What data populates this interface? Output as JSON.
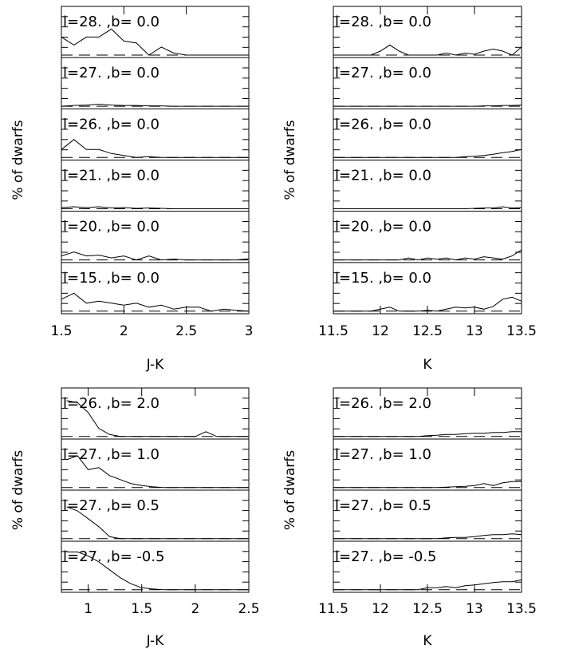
{
  "chart_data": [
    {
      "type": "line",
      "xlabel": "J-K",
      "ylabel": "% of dwarfs",
      "xlim": [
        1.5,
        3.0
      ],
      "xticks": [
        "1.5",
        "2",
        "2.5",
        "3"
      ],
      "panels": [
        {
          "label": "l=28. ,b=  0.0",
          "x": [
            1.5,
            1.6,
            1.7,
            1.8,
            1.9,
            2.0,
            2.1,
            2.2,
            2.3,
            2.4,
            2.5,
            2.6,
            2.7,
            2.8,
            2.9,
            3.0
          ],
          "y": [
            0.45,
            0.25,
            0.45,
            0.45,
            0.65,
            0.35,
            0.3,
            0.0,
            0.2,
            0.05,
            0.0,
            0.0,
            0.0,
            0.0,
            0.0,
            0.0
          ]
        },
        {
          "label": "l=27. ,b=  0.0",
          "x": [
            1.5,
            1.6,
            1.7,
            1.8,
            1.9,
            2.0,
            2.1,
            2.2,
            2.3,
            2.4,
            2.5,
            2.6,
            2.7,
            2.8,
            2.9,
            3.0
          ],
          "y": [
            0.0,
            0.02,
            0.03,
            0.05,
            0.03,
            0.02,
            0.02,
            0.01,
            0.01,
            0.0,
            0.0,
            0.0,
            0.0,
            0.0,
            0.0,
            0.0
          ]
        },
        {
          "label": "l=26. ,b=  0.0",
          "x": [
            1.5,
            1.6,
            1.7,
            1.8,
            1.9,
            2.0,
            2.1,
            2.2,
            2.3,
            2.4,
            2.5,
            2.6,
            2.7,
            2.8,
            2.9,
            3.0
          ],
          "y": [
            0.2,
            0.45,
            0.2,
            0.2,
            0.1,
            0.05,
            0.0,
            0.02,
            0.0,
            0.0,
            0.0,
            0.0,
            0.0,
            0.0,
            0.0,
            0.0
          ]
        },
        {
          "label": "l=21. ,b=  0.0",
          "x": [
            1.5,
            1.6,
            1.7,
            1.8,
            1.9,
            2.0,
            2.1,
            2.2,
            2.3,
            2.4,
            2.5,
            2.6,
            2.7,
            2.8,
            2.9,
            3.0
          ],
          "y": [
            0.03,
            0.05,
            0.03,
            0.05,
            0.02,
            0.03,
            0.01,
            0.02,
            0.01,
            0.0,
            0.0,
            0.0,
            0.0,
            0.0,
            0.0,
            0.0
          ]
        },
        {
          "label": "l=20. ,b=  0.0",
          "x": [
            1.5,
            1.6,
            1.7,
            1.8,
            1.9,
            2.0,
            2.1,
            2.2,
            2.3,
            2.4,
            2.5,
            2.6,
            2.7,
            2.8,
            2.9,
            3.0
          ],
          "y": [
            0.1,
            0.2,
            0.1,
            0.12,
            0.05,
            0.1,
            0.0,
            0.1,
            0.0,
            0.02,
            0.0,
            0.0,
            0.0,
            0.0,
            0.0,
            0.03
          ]
        },
        {
          "label": "l=15. ,b=  0.0",
          "x": [
            1.5,
            1.6,
            1.7,
            1.8,
            1.9,
            2.0,
            2.1,
            2.2,
            2.3,
            2.4,
            2.5,
            2.6,
            2.7,
            2.8,
            2.9,
            3.0
          ],
          "y": [
            0.3,
            0.45,
            0.2,
            0.25,
            0.2,
            0.15,
            0.2,
            0.1,
            0.15,
            0.05,
            0.1,
            0.1,
            0.0,
            0.05,
            0.02,
            0.0
          ]
        }
      ]
    },
    {
      "type": "line",
      "xlabel": "K",
      "ylabel": "% of dwarfs",
      "xlim": [
        11.5,
        13.5
      ],
      "xticks": [
        "11.5",
        "12",
        "12.5",
        "13",
        "13.5"
      ],
      "panels": [
        {
          "label": "l=28. ,b=  0.0",
          "x": [
            11.5,
            11.6,
            11.7,
            11.8,
            11.9,
            12.0,
            12.1,
            12.2,
            12.3,
            12.4,
            12.5,
            12.6,
            12.7,
            12.8,
            12.9,
            13.0,
            13.1,
            13.2,
            13.3,
            13.4,
            13.5
          ],
          "y": [
            0,
            0,
            0,
            0,
            0,
            0.1,
            0.25,
            0.1,
            0,
            0,
            0,
            0,
            0.05,
            0,
            0.05,
            0.02,
            0.1,
            0.15,
            0.1,
            0,
            0.2
          ]
        },
        {
          "label": "l=27. ,b=  0.0",
          "x": [
            11.5,
            11.6,
            11.7,
            11.8,
            11.9,
            12.0,
            12.1,
            12.2,
            12.3,
            12.4,
            12.5,
            12.6,
            12.7,
            12.8,
            12.9,
            13.0,
            13.1,
            13.2,
            13.3,
            13.4,
            13.5
          ],
          "y": [
            0,
            0,
            0,
            0,
            0,
            0,
            0,
            0,
            0,
            0,
            0,
            0,
            0,
            0,
            0,
            0,
            0.01,
            0.01,
            0.02,
            0.02,
            0.03
          ]
        },
        {
          "label": "l=26. ,b=  0.0",
          "x": [
            11.5,
            11.6,
            11.7,
            11.8,
            11.9,
            12.0,
            12.1,
            12.2,
            12.3,
            12.4,
            12.5,
            12.6,
            12.7,
            12.8,
            12.9,
            13.0,
            13.1,
            13.2,
            13.3,
            13.4,
            13.5
          ],
          "y": [
            0,
            0,
            0,
            0,
            0,
            0,
            0,
            0,
            0,
            0,
            0,
            0,
            0,
            0,
            0.02,
            0.03,
            0.05,
            0.08,
            0.12,
            0.15,
            0.2
          ]
        },
        {
          "label": "l=21. ,b=  0.0",
          "x": [
            11.5,
            11.6,
            11.7,
            11.8,
            11.9,
            12.0,
            12.1,
            12.2,
            12.3,
            12.4,
            12.5,
            12.6,
            12.7,
            12.8,
            12.9,
            13.0,
            13.1,
            13.2,
            13.3,
            13.4,
            13.5
          ],
          "y": [
            0,
            0,
            0,
            0,
            0,
            0,
            0,
            0,
            0,
            0,
            0,
            0,
            0,
            0,
            0,
            0.01,
            0.02,
            0.02,
            0.05,
            0.02,
            0.03
          ]
        },
        {
          "label": "l=20. ,b=  0.0",
          "x": [
            11.5,
            11.6,
            11.7,
            11.8,
            11.9,
            12.0,
            12.1,
            12.2,
            12.3,
            12.4,
            12.5,
            12.6,
            12.7,
            12.8,
            12.9,
            13.0,
            13.1,
            13.2,
            13.3,
            13.4,
            13.5
          ],
          "y": [
            0,
            0,
            0,
            0,
            0,
            0,
            0,
            0,
            0.05,
            0,
            0.05,
            0.02,
            0.05,
            0,
            0.05,
            0.02,
            0.08,
            0.05,
            0.02,
            0.1,
            0.25
          ]
        },
        {
          "label": "l=15. ,b=  0.0",
          "x": [
            11.5,
            11.6,
            11.7,
            11.8,
            11.9,
            12.0,
            12.1,
            12.2,
            12.3,
            12.4,
            12.5,
            12.6,
            12.7,
            12.8,
            12.9,
            13.0,
            13.1,
            13.2,
            13.3,
            13.4,
            13.5
          ],
          "y": [
            0,
            0,
            0,
            0,
            0,
            0.05,
            0.1,
            0,
            0,
            0,
            0.02,
            0,
            0.05,
            0.1,
            0.08,
            0.1,
            0.05,
            0.12,
            0.3,
            0.35,
            0.25
          ]
        }
      ]
    },
    {
      "type": "line",
      "xlabel": "J-K",
      "ylabel": "% of dwarfs",
      "xlim": [
        0.75,
        2.5
      ],
      "xticks": [
        "1",
        "1.5",
        "2",
        "2.5"
      ],
      "panels": [
        {
          "label": "l=26. ,b=  2.0",
          "x": [
            0.8,
            0.9,
            1.0,
            1.1,
            1.2,
            1.3,
            1.4,
            1.5,
            1.6,
            1.7,
            1.8,
            1.9,
            2.0,
            2.1,
            2.2,
            2.3,
            2.4,
            2.5
          ],
          "y": [
            0.9,
            0.85,
            0.6,
            0.2,
            0.05,
            0,
            0,
            0,
            0,
            0,
            0,
            0,
            0,
            0.12,
            0,
            0,
            0,
            0
          ]
        },
        {
          "label": "l=27. ,b=  1.0",
          "x": [
            0.8,
            0.9,
            1.0,
            1.1,
            1.2,
            1.3,
            1.4,
            1.5,
            1.6,
            1.7,
            1.8,
            1.9,
            2.0,
            2.1,
            2.2,
            2.3,
            2.4,
            2.5
          ],
          "y": [
            0.7,
            0.8,
            0.45,
            0.5,
            0.3,
            0.2,
            0.1,
            0.05,
            0.02,
            0,
            0,
            0,
            0,
            0,
            0,
            0,
            0,
            0
          ]
        },
        {
          "label": "l=27. ,b=  0.5",
          "x": [
            0.8,
            0.9,
            1.0,
            1.1,
            1.2,
            1.3,
            1.4,
            1.5,
            1.6,
            1.7,
            1.8,
            1.9,
            2.0,
            2.1,
            2.2,
            2.3,
            2.4,
            2.5
          ],
          "y": [
            0.8,
            0.7,
            0.5,
            0.3,
            0.05,
            0,
            0,
            0,
            0,
            0,
            0,
            0,
            0,
            0,
            0,
            0,
            0,
            0
          ]
        },
        {
          "label": "l=27. ,b= -0.5",
          "x": [
            0.8,
            0.9,
            1.0,
            1.1,
            1.2,
            1.3,
            1.4,
            1.5,
            1.6,
            1.7,
            1.8,
            1.9,
            2.0,
            2.1,
            2.2,
            2.3,
            2.4,
            2.5
          ],
          "y": [
            0.95,
            0.95,
            0.85,
            0.7,
            0.5,
            0.3,
            0.15,
            0.05,
            0.02,
            0,
            0,
            0,
            0,
            0,
            0,
            0,
            0,
            0
          ]
        }
      ]
    },
    {
      "type": "line",
      "xlabel": "K",
      "ylabel": "% of dwarfs",
      "xlim": [
        11.5,
        13.5
      ],
      "xticks": [
        "11.5",
        "12",
        "12.5",
        "13",
        "13.5"
      ],
      "panels": [
        {
          "label": "l=26. ,b=  2.0",
          "x": [
            11.5,
            11.6,
            11.7,
            11.8,
            11.9,
            12.0,
            12.1,
            12.2,
            12.3,
            12.4,
            12.5,
            12.6,
            12.7,
            12.8,
            12.9,
            13.0,
            13.1,
            13.2,
            13.3,
            13.4,
            13.5
          ],
          "y": [
            0,
            0,
            0,
            0,
            0,
            0,
            0,
            0,
            0,
            0,
            0.02,
            0.03,
            0.05,
            0.05,
            0.07,
            0.08,
            0.08,
            0.1,
            0.1,
            0.12,
            0.12
          ]
        },
        {
          "label": "l=27. ,b=  1.0",
          "x": [
            11.5,
            11.6,
            11.7,
            11.8,
            11.9,
            12.0,
            12.1,
            12.2,
            12.3,
            12.4,
            12.5,
            12.6,
            12.7,
            12.8,
            12.9,
            13.0,
            13.1,
            13.2,
            13.3,
            13.4,
            13.5
          ],
          "y": [
            0,
            0,
            0,
            0,
            0,
            0,
            0,
            0,
            0,
            0,
            0,
            0,
            0.01,
            0.02,
            0.03,
            0.05,
            0.1,
            0.05,
            0.12,
            0.15,
            0.15
          ]
        },
        {
          "label": "l=27. ,b=  0.5",
          "x": [
            11.5,
            11.6,
            11.7,
            11.8,
            11.9,
            12.0,
            12.1,
            12.2,
            12.3,
            12.4,
            12.5,
            12.6,
            12.7,
            12.8,
            12.9,
            13.0,
            13.1,
            13.2,
            13.3,
            13.4,
            13.5
          ],
          "y": [
            0,
            0,
            0,
            0,
            0,
            0,
            0,
            0,
            0,
            0,
            0,
            0,
            0.02,
            0.03,
            0.03,
            0.05,
            0.08,
            0.1,
            0.1,
            0.12,
            0.1
          ]
        },
        {
          "label": "l=27. ,b= -0.5",
          "x": [
            11.5,
            11.6,
            11.7,
            11.8,
            11.9,
            12.0,
            12.1,
            12.2,
            12.3,
            12.4,
            12.5,
            12.6,
            12.7,
            12.8,
            12.9,
            13.0,
            13.1,
            13.2,
            13.3,
            13.4,
            13.5
          ],
          "y": [
            0,
            0,
            0,
            0,
            0,
            0,
            0,
            0,
            0,
            0,
            0.05,
            0.05,
            0.08,
            0.05,
            0.1,
            0.12,
            0.15,
            0.18,
            0.2,
            0.2,
            0.25
          ]
        }
      ]
    }
  ]
}
